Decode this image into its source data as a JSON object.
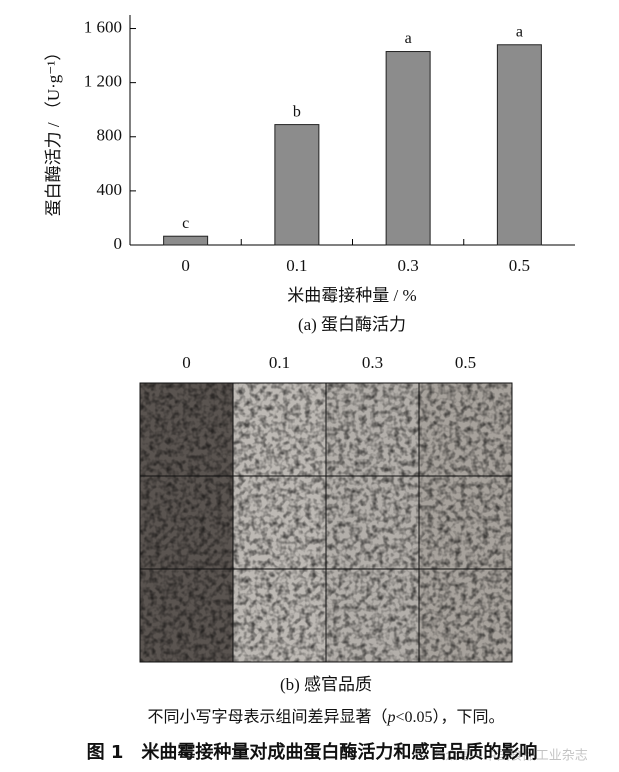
{
  "chart_data": {
    "type": "bar",
    "x_label": "米曲霉接种量 / %",
    "y_label": "蛋白酶活力 / （U·g⁻¹）",
    "categories": [
      "0",
      "0.1",
      "0.3",
      "0.5"
    ],
    "values": [
      65,
      890,
      1430,
      1480
    ],
    "significance_letters": [
      "c",
      "b",
      "a",
      "a"
    ],
    "color": "#8c8c8c",
    "ylim": [
      0,
      1700
    ],
    "yticks": [
      0,
      400,
      800,
      {
        "value": 1200,
        "label": "1 200"
      },
      {
        "value": 1600,
        "label": "1 600"
      }
    ],
    "subcaption": "(a) 蛋白酶活力"
  },
  "photo_panel": {
    "columns": [
      "0",
      "0.1",
      "0.3",
      "0.5"
    ],
    "subcaption": "(b) 感官品质"
  },
  "note": {
    "before": "不同小写字母表示组间差异显著（",
    "italic": "p",
    "after": "<0.05），下同。"
  },
  "figure_title": "图 1　米曲霉接种量对成曲蛋白酶活力和感官品质的影响",
  "watermark": "公众号 · 中国食品工业杂志"
}
